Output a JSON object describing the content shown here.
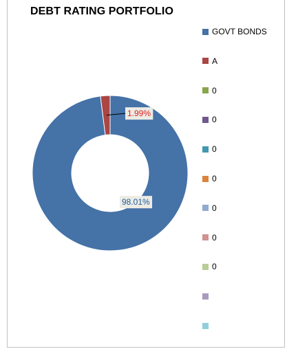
{
  "chart_data": {
    "type": "pie",
    "title": "DEBT RATING PORTFOLIO",
    "series": [
      {
        "name": "GOVT BONDS",
        "value": 98.01,
        "label": "98.01%",
        "color": "#4572A7"
      },
      {
        "name": "A",
        "value": 1.99,
        "label": "1.99%",
        "color": "#AA4643"
      },
      {
        "name": "0",
        "value": 0,
        "label": "",
        "color": "#89A54E"
      },
      {
        "name": "0",
        "value": 0,
        "label": "",
        "color": "#71588F"
      },
      {
        "name": "0",
        "value": 0,
        "label": "",
        "color": "#4198AF"
      },
      {
        "name": "0",
        "value": 0,
        "label": "",
        "color": "#DB843D"
      },
      {
        "name": "0",
        "value": 0,
        "label": "",
        "color": "#93A9CF"
      },
      {
        "name": "0",
        "value": 0,
        "label": "",
        "color": "#D19392"
      },
      {
        "name": "0",
        "value": 0,
        "label": "",
        "color": "#B9CD96"
      },
      {
        "name": "",
        "value": 0,
        "label": "",
        "color": "#A99BBD"
      },
      {
        "name": "",
        "value": 0,
        "label": "",
        "color": "#92CDDC"
      }
    ],
    "donut": true,
    "legend_position": "right"
  },
  "label_colors": {
    "GOVT BONDS": "#1F5FA0",
    "A": "#E02020"
  }
}
